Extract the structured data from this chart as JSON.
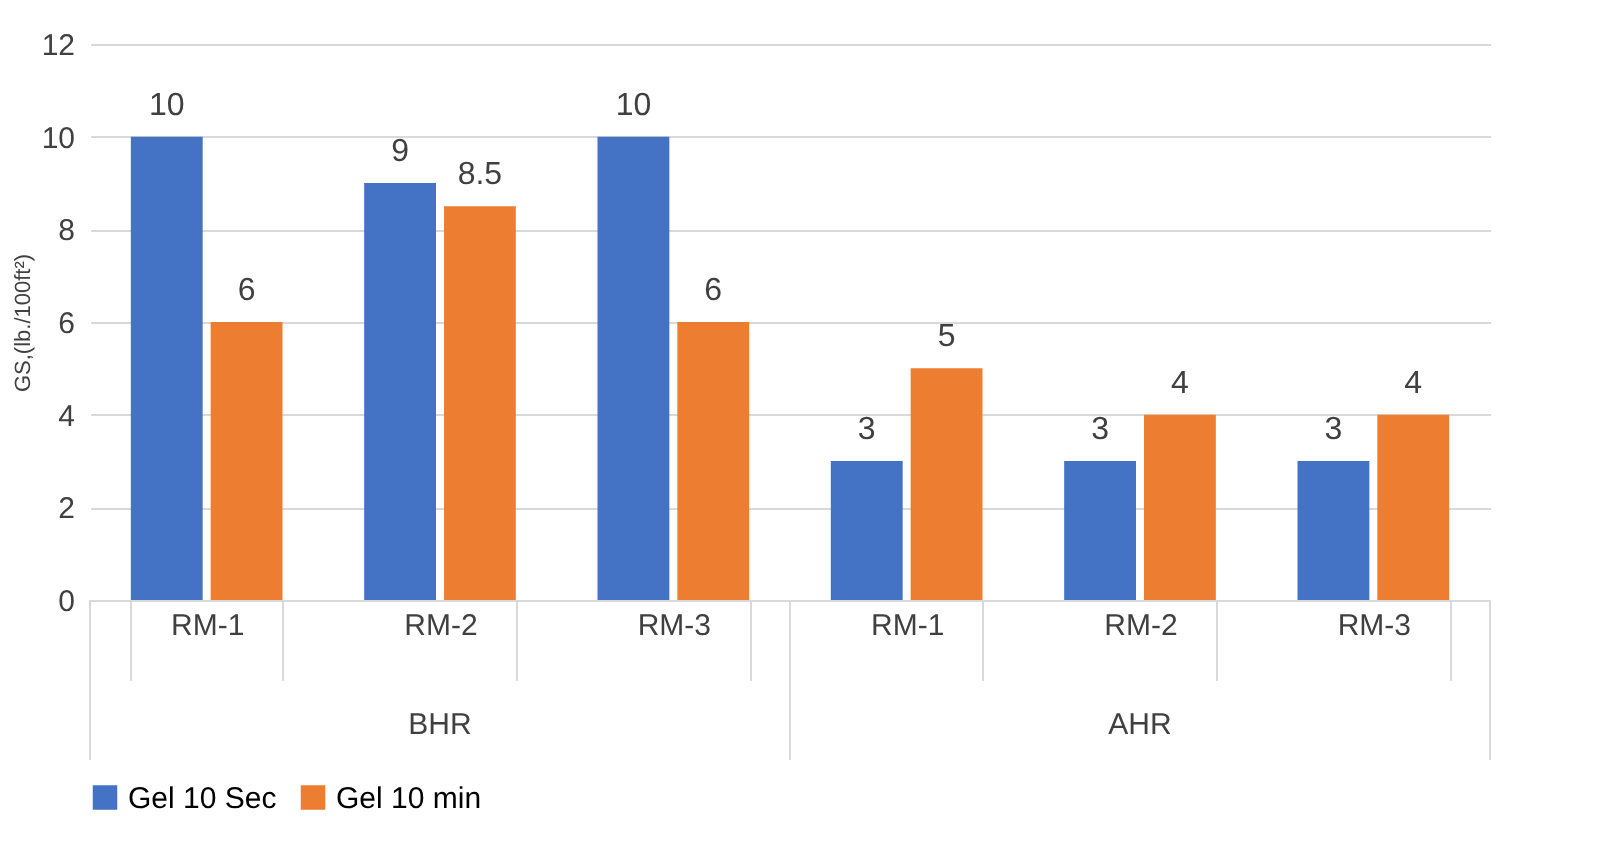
{
  "chart_data": {
    "type": "bar",
    "ylabel": "GS,(lb./100ft²)",
    "categories": [
      "RM-1",
      "RM-2",
      "RM-3",
      "RM-1",
      "RM-2",
      "RM-3"
    ],
    "series": [
      {
        "name": "Gel 10 Sec",
        "color": "#4472c4",
        "values": [
          10,
          9,
          10,
          3,
          3,
          3
        ]
      },
      {
        "name": "Gel 10 min",
        "color": "#ed7d31",
        "values": [
          6,
          8.5,
          6,
          5,
          4,
          4
        ]
      }
    ],
    "annotations": [
      "BHR",
      "AHR"
    ],
    "ylim": [
      0,
      12
    ],
    "yticks": [
      0,
      2,
      4,
      6,
      8,
      10,
      12
    ],
    "grid": "y",
    "legend": "bottom",
    "data_labels": true
  }
}
